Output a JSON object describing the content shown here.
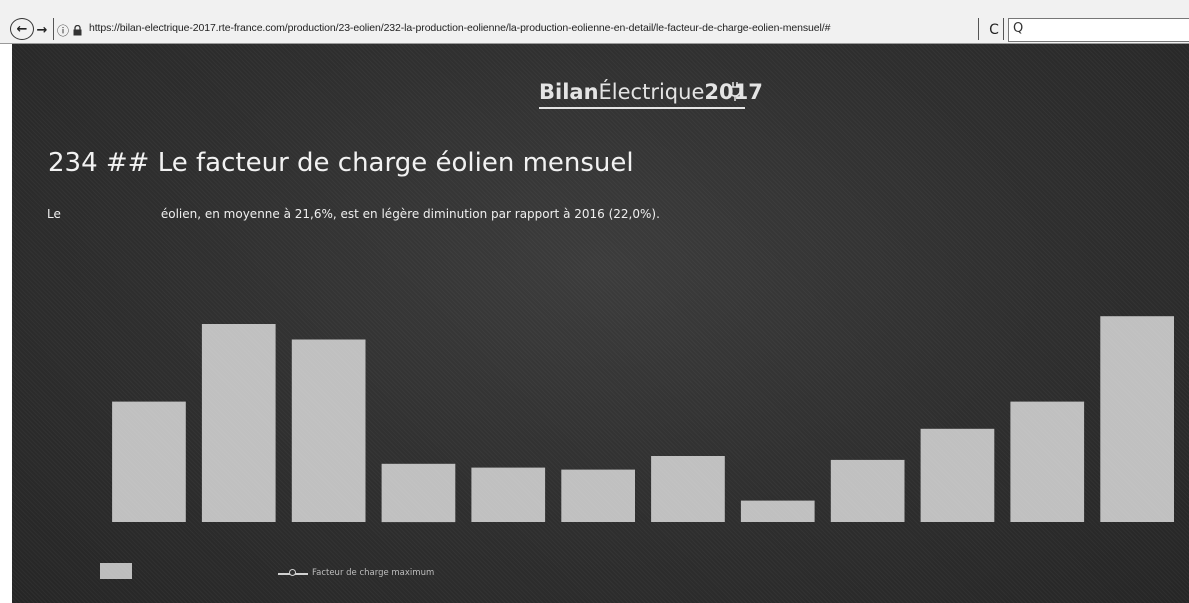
{
  "browser": {
    "back_icon": "arrow-left-icon",
    "back_glyph": "←",
    "forward_icon": "arrow-right-icon",
    "forward_glyph": "→",
    "info_glyph": "ⓘ",
    "lock_glyph": "🔒",
    "url": "https://bilan-electrique-2017.rte-france.com/production/23-eolien/232-la-production-eolienne/la-production-eolienne-en-detail/le-facteur-de-charge-eolien-mensuel/#",
    "reload_glyph": "C",
    "search_glyph": "Q"
  },
  "header": {
    "logo_bold": "Bilan",
    "logo_thin": "Électrique",
    "logo_year": "2017"
  },
  "main": {
    "title": "234 ## Le facteur de charge éolien mensuel",
    "intro_prefix": "Le",
    "intro_text": "éolien, en moyenne à 21,6%, est en légère diminution par rapport à 2016 (22,0%)."
  },
  "legend": {
    "line_label": "Facteur de charge maximum"
  },
  "colors": {
    "page_background": "#2e2e2e",
    "bar_fill": "#c0c0c0",
    "text": "#f2f2f2"
  },
  "chart_data": {
    "type": "bar",
    "categories": [
      "",
      "",
      "",
      "",
      "",
      "",
      "",
      "",
      "",
      "",
      "",
      ""
    ],
    "values": [
      31,
      51,
      47,
      15,
      14,
      13.5,
      17,
      5.5,
      16,
      24,
      31,
      53
    ],
    "ylim": [
      0,
      60
    ],
    "grid": false,
    "legend_position": "bottom-left"
  }
}
